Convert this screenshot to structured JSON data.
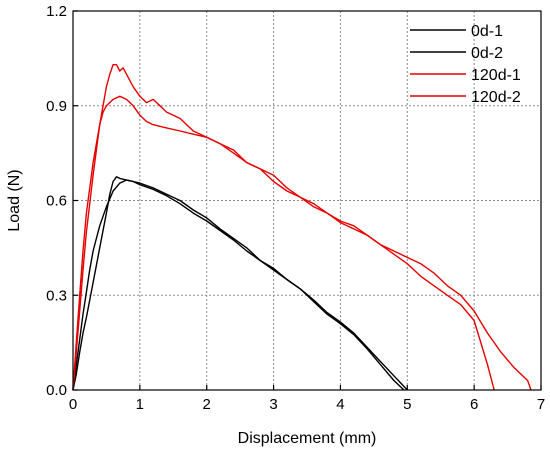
{
  "chart_data": {
    "type": "line",
    "xlabel": "Displacement (mm)",
    "ylabel": "Load (N)",
    "xlim": [
      0,
      7
    ],
    "ylim": [
      0,
      1.2
    ],
    "xticks": [
      "0",
      "1",
      "2",
      "3",
      "4",
      "5",
      "6",
      "7"
    ],
    "yticks": [
      "0.0",
      "0.3",
      "0.6",
      "0.9",
      "1.2"
    ],
    "grid": true,
    "legend_position": "top-right",
    "series": [
      {
        "name": "0d-1",
        "color": "#000000",
        "x": [
          0,
          0.05,
          0.1,
          0.15,
          0.2,
          0.3,
          0.4,
          0.5,
          0.55,
          0.6,
          0.65,
          0.7,
          0.8,
          0.9,
          1.0,
          1.2,
          1.4,
          1.6,
          1.8,
          2.0,
          2.2,
          2.4,
          2.6,
          2.8,
          3.0,
          3.2,
          3.4,
          3.6,
          3.8,
          4.0,
          4.2,
          4.4,
          4.6,
          4.8,
          4.95
        ],
        "y": [
          0,
          0.05,
          0.12,
          0.18,
          0.23,
          0.34,
          0.45,
          0.56,
          0.62,
          0.66,
          0.675,
          0.67,
          0.665,
          0.66,
          0.655,
          0.64,
          0.62,
          0.6,
          0.57,
          0.545,
          0.51,
          0.48,
          0.45,
          0.41,
          0.385,
          0.35,
          0.32,
          0.28,
          0.24,
          0.21,
          0.175,
          0.13,
          0.08,
          0.03,
          0
        ]
      },
      {
        "name": "0d-2",
        "color": "#000000",
        "x": [
          0,
          0.05,
          0.1,
          0.15,
          0.2,
          0.25,
          0.3,
          0.4,
          0.5,
          0.6,
          0.7,
          0.8,
          0.9,
          1.0,
          1.2,
          1.4,
          1.6,
          1.8,
          2.0,
          2.2,
          2.4,
          2.6,
          2.8,
          3.0,
          3.2,
          3.4,
          3.6,
          3.8,
          4.0,
          4.2,
          4.4,
          4.6,
          4.8,
          5.0
        ],
        "y": [
          0,
          0.08,
          0.16,
          0.24,
          0.31,
          0.38,
          0.44,
          0.52,
          0.58,
          0.63,
          0.655,
          0.665,
          0.66,
          0.65,
          0.635,
          0.615,
          0.59,
          0.56,
          0.535,
          0.505,
          0.475,
          0.44,
          0.41,
          0.38,
          0.35,
          0.32,
          0.285,
          0.245,
          0.215,
          0.18,
          0.135,
          0.09,
          0.045,
          0
        ]
      },
      {
        "name": "120d-1",
        "color": "#e60000",
        "x": [
          0,
          0.05,
          0.1,
          0.15,
          0.2,
          0.3,
          0.4,
          0.5,
          0.55,
          0.6,
          0.65,
          0.7,
          0.75,
          0.8,
          0.9,
          1.0,
          1.1,
          1.2,
          1.3,
          1.4,
          1.5,
          1.6,
          1.8,
          2.0,
          2.2,
          2.4,
          2.6,
          2.8,
          3.0,
          3.2,
          3.4,
          3.6,
          3.8,
          4.0,
          4.2,
          4.4,
          4.6,
          4.8,
          5.0,
          5.2,
          5.4,
          5.6,
          5.8,
          6.0,
          6.2,
          6.4,
          6.6,
          6.8,
          6.85
        ],
        "y": [
          0,
          0.12,
          0.25,
          0.38,
          0.5,
          0.68,
          0.84,
          0.96,
          1.0,
          1.03,
          1.03,
          1.01,
          1.02,
          1.0,
          0.96,
          0.93,
          0.91,
          0.92,
          0.9,
          0.88,
          0.87,
          0.86,
          0.82,
          0.8,
          0.78,
          0.76,
          0.72,
          0.7,
          0.66,
          0.63,
          0.61,
          0.58,
          0.56,
          0.535,
          0.52,
          0.49,
          0.46,
          0.44,
          0.42,
          0.4,
          0.37,
          0.33,
          0.3,
          0.25,
          0.18,
          0.12,
          0.07,
          0.03,
          0
        ]
      },
      {
        "name": "120d-2",
        "color": "#e60000",
        "x": [
          0,
          0.05,
          0.1,
          0.15,
          0.2,
          0.3,
          0.4,
          0.45,
          0.5,
          0.55,
          0.6,
          0.7,
          0.8,
          0.9,
          1.0,
          1.1,
          1.2,
          1.4,
          1.6,
          1.8,
          2.0,
          2.2,
          2.4,
          2.6,
          2.8,
          3.0,
          3.2,
          3.4,
          3.6,
          3.8,
          4.0,
          4.2,
          4.4,
          4.6,
          4.8,
          5.0,
          5.2,
          5.4,
          5.6,
          5.8,
          6.0,
          6.1,
          6.2,
          6.3
        ],
        "y": [
          0,
          0.15,
          0.3,
          0.44,
          0.56,
          0.72,
          0.84,
          0.88,
          0.9,
          0.91,
          0.92,
          0.93,
          0.92,
          0.9,
          0.87,
          0.85,
          0.84,
          0.83,
          0.82,
          0.81,
          0.8,
          0.78,
          0.75,
          0.72,
          0.7,
          0.68,
          0.64,
          0.61,
          0.59,
          0.56,
          0.53,
          0.51,
          0.49,
          0.46,
          0.43,
          0.4,
          0.36,
          0.33,
          0.3,
          0.27,
          0.22,
          0.15,
          0.08,
          0
        ]
      }
    ]
  }
}
